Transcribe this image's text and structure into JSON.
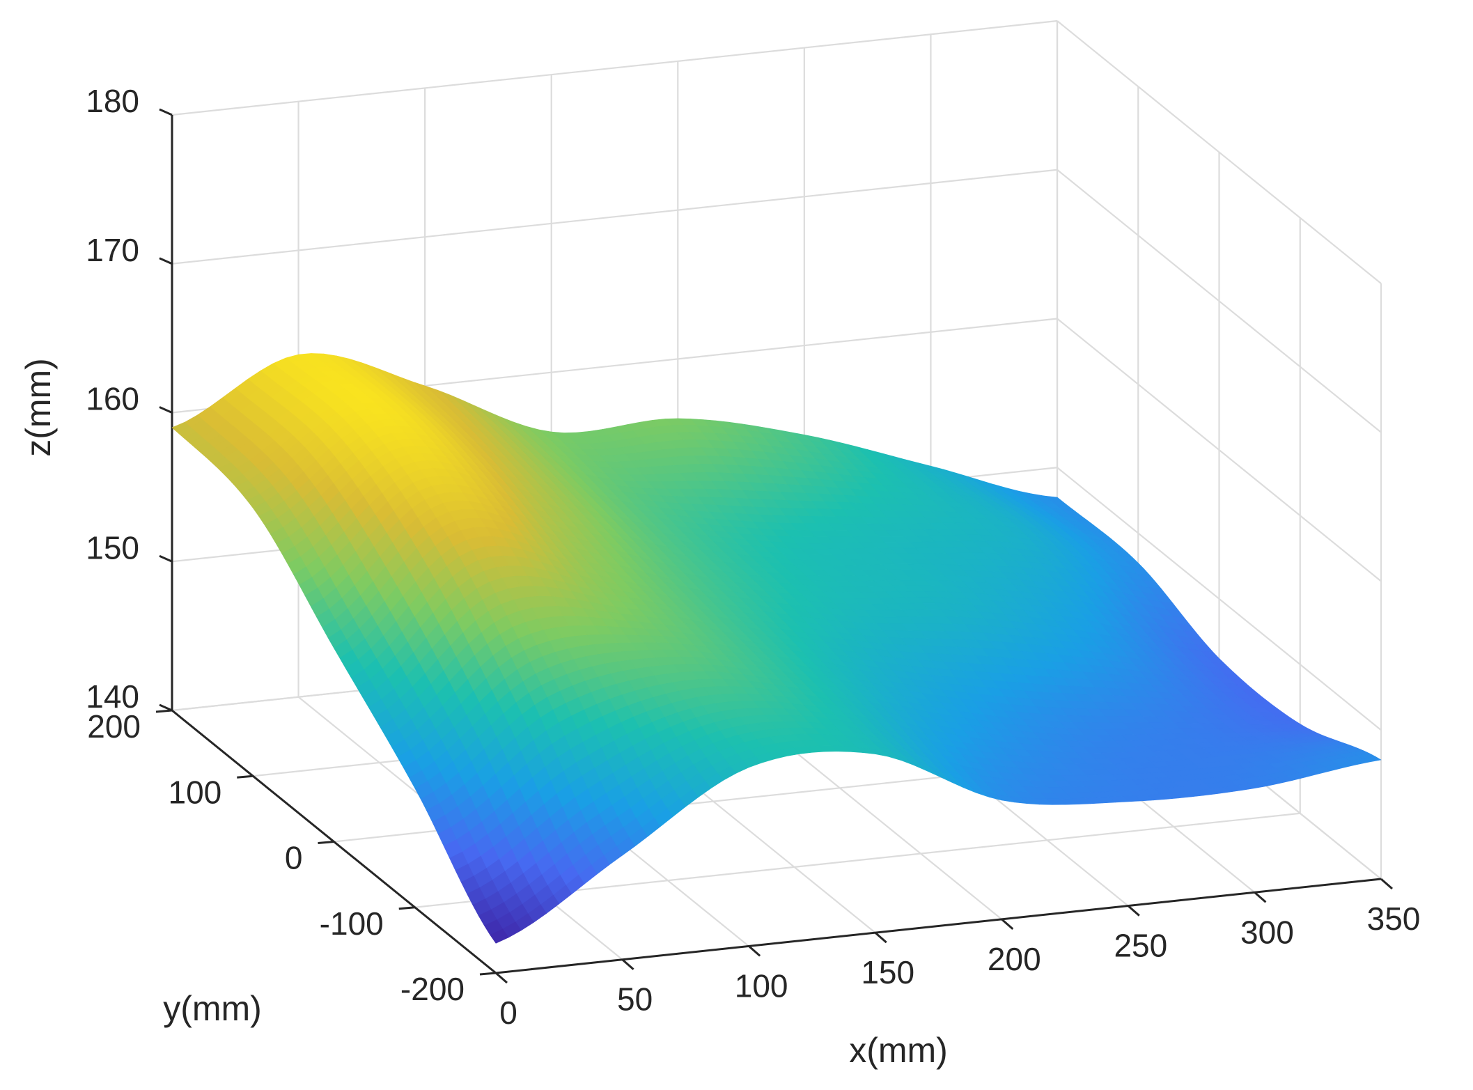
{
  "chart_data": {
    "type": "surface",
    "title": "",
    "xlabel": "x(mm)",
    "ylabel": "y(mm)",
    "zlabel": "z(mm)",
    "xlim": [
      0,
      350
    ],
    "ylim": [
      -200,
      200
    ],
    "zlim": [
      140,
      180
    ],
    "x_ticks": [
      "0",
      "50",
      "100",
      "150",
      "200",
      "250",
      "300",
      "350"
    ],
    "y_ticks": [
      "-200",
      "-100",
      "0",
      "100",
      "200"
    ],
    "z_ticks": [
      "140",
      "150",
      "160",
      "170",
      "180"
    ],
    "grid": true,
    "colormap": "parula",
    "colormap_colors": [
      "#3e26a8",
      "#4769f1",
      "#1a9fe5",
      "#1cc0b0",
      "#7ecb62",
      "#d9bc35",
      "#f9e31f"
    ],
    "surface": {
      "x_grid": [
        0,
        50,
        100,
        150,
        200,
        250,
        300,
        350
      ],
      "y_grid": [
        -200,
        -100,
        0,
        100,
        200
      ],
      "z_rows": [
        [
          142,
          147,
          152,
          152,
          148,
          147,
          147,
          148
        ],
        [
          148,
          154,
          155,
          153,
          150,
          148,
          147,
          146
        ],
        [
          153,
          160,
          157,
          154,
          152,
          151,
          149,
          146
        ],
        [
          158,
          163,
          159,
          155,
          153,
          152,
          151,
          148
        ],
        [
          159,
          163,
          160,
          156,
          156,
          154,
          151,
          148
        ]
      ]
    }
  }
}
